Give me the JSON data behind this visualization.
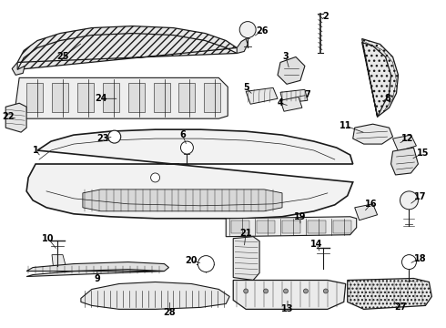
{
  "background": "#ffffff",
  "line_color": "#1a1a1a",
  "label_fontsize": 7,
  "label_color": "#000000",
  "figsize": [
    4.9,
    3.6
  ],
  "dpi": 100
}
